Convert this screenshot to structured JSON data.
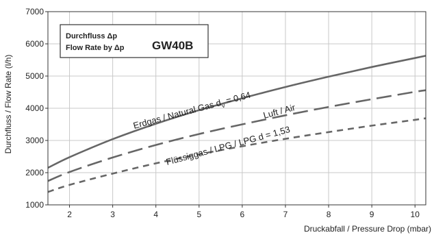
{
  "chart_data": {
    "type": "line",
    "xlabel": "Druckabfall / Pressure Drop (mbar)",
    "ylabel": "Durchfluss / Flow Rate (l/h)",
    "xlim": [
      1.5,
      10.25
    ],
    "ylim": [
      1000,
      7000
    ],
    "x_ticks": [
      "2",
      "3",
      "4",
      "5",
      "6",
      "7",
      "8",
      "9",
      "10"
    ],
    "y_ticks": [
      "1000",
      "2000",
      "3000",
      "4000",
      "5000",
      "6000",
      "7000"
    ],
    "grid": true,
    "legend_box": {
      "line1": "Durchfluss Δp",
      "line2": "Flow Rate by Δp",
      "model": "GW40B"
    },
    "series": [
      {
        "label": "Erdgas / Natural Gas d",
        "label_sub": "v",
        "label_suffix": " = 0,64",
        "style": "solid",
        "color": "#666666",
        "x": [
          1.5,
          2,
          3,
          4,
          5,
          6,
          7,
          8,
          9,
          10,
          10.25
        ],
        "y": [
          2150,
          2480,
          3040,
          3520,
          3940,
          4310,
          4660,
          4980,
          5280,
          5560,
          5630
        ]
      },
      {
        "label": "Luft / Air",
        "style": "dash",
        "color": "#666666",
        "x": [
          1.5,
          2,
          3,
          4,
          5,
          6,
          7,
          8,
          9,
          10,
          10.25
        ],
        "y": [
          1740,
          2020,
          2470,
          2860,
          3200,
          3500,
          3780,
          4040,
          4280,
          4510,
          4560
        ]
      },
      {
        "label": "Flüssiggas / LPG / LPG d = 1,53",
        "style": "short-dash",
        "color": "#666666",
        "x": [
          1.5,
          2,
          3,
          4,
          5,
          6,
          7,
          8,
          9,
          10,
          10.25
        ],
        "y": [
          1400,
          1620,
          1970,
          2290,
          2570,
          2820,
          3050,
          3260,
          3460,
          3640,
          3690
        ]
      }
    ]
  }
}
